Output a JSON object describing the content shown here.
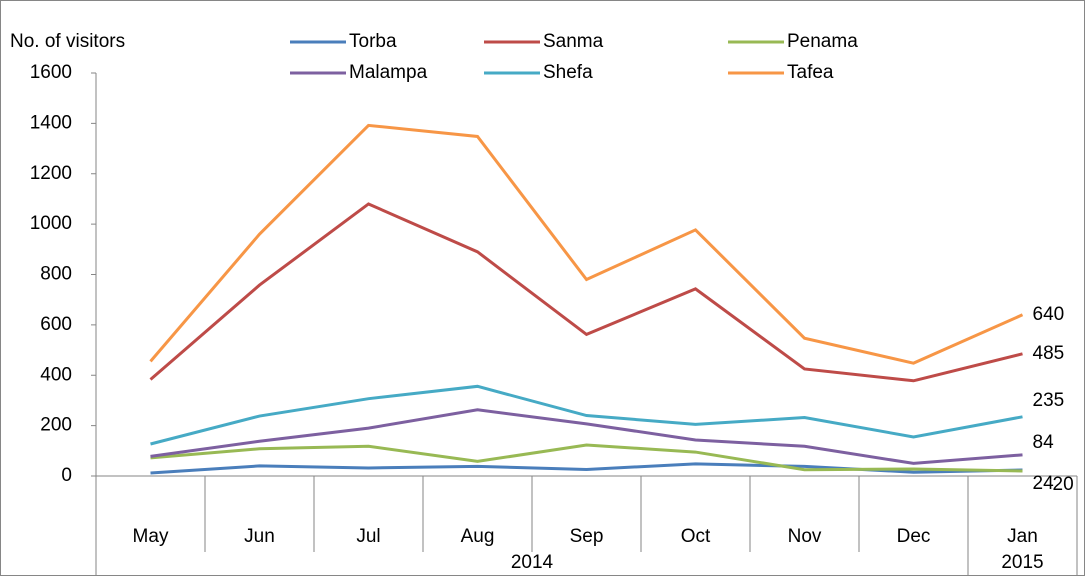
{
  "chart_data": {
    "type": "line",
    "y_label": "No. of visitors",
    "categories": [
      "May",
      "Jun",
      "Jul",
      "Aug",
      "Sep",
      "Oct",
      "Nov",
      "Dec",
      "Jan"
    ],
    "category_groups": [
      {
        "label": "2014",
        "span": 8
      },
      {
        "label": "2015",
        "span": 1
      }
    ],
    "series": [
      {
        "name": "Torba",
        "color": "#4a7ebb",
        "values": [
          12,
          40,
          32,
          38,
          26,
          48,
          38,
          15,
          24
        ]
      },
      {
        "name": "Sanma",
        "color": "#be4b48",
        "values": [
          383,
          758,
          1080,
          890,
          562,
          743,
          425,
          378,
          485
        ]
      },
      {
        "name": "Penama",
        "color": "#98b954",
        "values": [
          72,
          108,
          118,
          58,
          123,
          95,
          25,
          28,
          20
        ]
      },
      {
        "name": "Malampa",
        "color": "#7d60a0",
        "values": [
          78,
          138,
          190,
          263,
          207,
          143,
          118,
          50,
          84
        ]
      },
      {
        "name": "Shefa",
        "color": "#46aac5",
        "values": [
          127,
          238,
          307,
          356,
          240,
          205,
          232,
          155,
          235
        ]
      },
      {
        "name": "Tafea",
        "color": "#f79646",
        "values": [
          455,
          960,
          1392,
          1348,
          780,
          977,
          547,
          448,
          640
        ]
      }
    ],
    "last_value_labels": true,
    "ylim": [
      0,
      1600
    ],
    "yticks": [
      0,
      200,
      400,
      600,
      800,
      1000,
      1200,
      1400,
      1600
    ],
    "grid": false
  }
}
